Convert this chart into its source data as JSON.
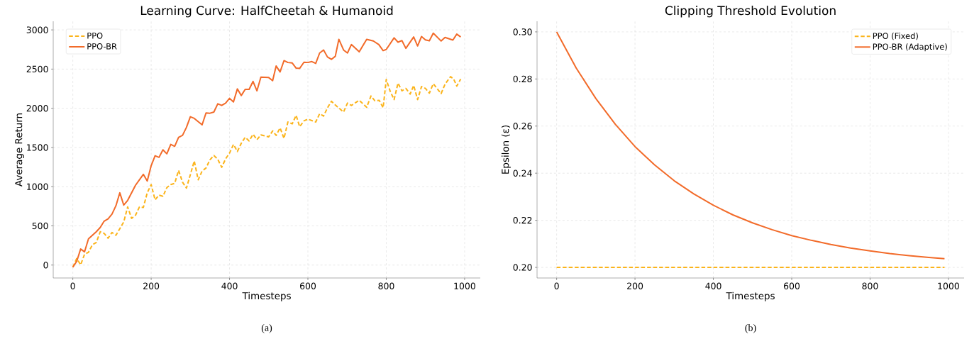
{
  "chart_data": [
    {
      "type": "line",
      "title": "Learning Curve: HalfCheetah & Humanoid",
      "xlabel": "Timesteps",
      "ylabel": "Average Return",
      "xlim": [
        -50,
        1040
      ],
      "ylim": [
        -165,
        3110
      ],
      "xticks": [
        0,
        200,
        400,
        600,
        800,
        1000
      ],
      "yticks": [
        0,
        500,
        1000,
        1500,
        2000,
        2500,
        3000
      ],
      "grid": true,
      "legend": "top left",
      "annotations": [
        "(a)"
      ],
      "series": [
        {
          "name": "PPO",
          "color": "#fbb41b",
          "line_style": "dashed",
          "x": [
            0,
            10,
            20,
            30,
            40,
            50,
            60,
            70,
            80,
            90,
            100,
            110,
            120,
            130,
            140,
            150,
            160,
            170,
            180,
            190,
            200,
            210,
            220,
            230,
            240,
            250,
            260,
            270,
            280,
            290,
            300,
            310,
            320,
            330,
            340,
            350,
            360,
            370,
            380,
            390,
            400,
            410,
            420,
            430,
            440,
            450,
            460,
            470,
            480,
            500,
            510,
            519,
            529,
            539,
            549,
            560,
            570,
            579,
            590,
            600,
            620,
            630,
            640,
            650,
            660,
            670,
            691,
            701,
            711,
            731,
            750,
            761,
            771,
            782,
            792,
            800,
            810,
            820,
            830,
            840,
            850,
            861,
            870,
            880,
            890,
            900,
            910,
            920,
            940,
            950,
            964,
            972,
            980,
            990
          ],
          "values": [
            -27,
            84,
            3,
            139,
            163,
            259,
            289,
            425,
            404,
            343,
            416,
            380,
            464,
            551,
            741,
            596,
            636,
            741,
            735,
            922,
            1027,
            831,
            892,
            877,
            988,
            1027,
            1042,
            1208,
            1057,
            982,
            1154,
            1328,
            1087,
            1199,
            1238,
            1343,
            1398,
            1349,
            1247,
            1355,
            1428,
            1539,
            1449,
            1554,
            1630,
            1584,
            1669,
            1599,
            1660,
            1636,
            1711,
            1654,
            1750,
            1615,
            1825,
            1801,
            1910,
            1765,
            1840,
            1861,
            1825,
            1931,
            1901,
            2006,
            2090,
            2042,
            1952,
            2066,
            2036,
            2102,
            2012,
            2157,
            2096,
            2102,
            2006,
            2367,
            2217,
            2111,
            2322,
            2223,
            2253,
            2181,
            2292,
            2111,
            2277,
            2253,
            2193,
            2313,
            2187,
            2307,
            2404,
            2373,
            2283,
            2373
          ]
        },
        {
          "name": "PPO-BR",
          "color": "#f26b2a",
          "line_style": "solid",
          "x": [
            0,
            10,
            20,
            30,
            40,
            50,
            60,
            70,
            80,
            90,
            100,
            110,
            120,
            130,
            140,
            160,
            180,
            190,
            200,
            210,
            220,
            230,
            240,
            250,
            260,
            270,
            280,
            290,
            300,
            310,
            330,
            340,
            350,
            360,
            370,
            380,
            390,
            400,
            410,
            420,
            430,
            440,
            450,
            460,
            470,
            480,
            500,
            510,
            519,
            529,
            539,
            549,
            560,
            570,
            579,
            590,
            600,
            610,
            620,
            630,
            640,
            650,
            660,
            670,
            679,
            691,
            701,
            711,
            731,
            750,
            767,
            781,
            792,
            800,
            820,
            830,
            840,
            850,
            870,
            880,
            890,
            900,
            910,
            920,
            940,
            950,
            970,
            980,
            990
          ],
          "values": [
            -27,
            48,
            205,
            169,
            334,
            380,
            425,
            479,
            560,
            590,
            650,
            756,
            922,
            765,
            825,
            1018,
            1157,
            1072,
            1268,
            1395,
            1374,
            1470,
            1419,
            1539,
            1515,
            1630,
            1654,
            1756,
            1892,
            1871,
            1789,
            1940,
            1937,
            1952,
            2057,
            2036,
            2066,
            2127,
            2081,
            2247,
            2163,
            2241,
            2241,
            2343,
            2223,
            2398,
            2392,
            2352,
            2539,
            2464,
            2608,
            2584,
            2578,
            2512,
            2509,
            2587,
            2584,
            2596,
            2572,
            2705,
            2744,
            2654,
            2624,
            2663,
            2880,
            2744,
            2705,
            2813,
            2720,
            2880,
            2859,
            2813,
            2735,
            2750,
            2898,
            2843,
            2864,
            2765,
            2910,
            2795,
            2916,
            2873,
            2861,
            2958,
            2858,
            2904,
            2870,
            2946,
            2910
          ]
        }
      ]
    },
    {
      "type": "line",
      "title": "Clipping Threshold Evolution",
      "xlabel": "Timesteps",
      "ylabel": "Epsilon (ε)",
      "xlim": [
        -50,
        1040
      ],
      "ylim": [
        0.1955,
        0.3045
      ],
      "xticks": [
        0,
        200,
        400,
        600,
        800,
        1000
      ],
      "yticks": [
        {
          "value": 0.2,
          "label": "0.20"
        },
        {
          "value": 0.22,
          "label": "0.22"
        },
        {
          "value": 0.24,
          "label": "0.24"
        },
        {
          "value": 0.26,
          "label": "0.26"
        },
        {
          "value": 0.28,
          "label": "0.28"
        },
        {
          "value": 0.3,
          "label": "0.30"
        }
      ],
      "grid": true,
      "legend": "top right",
      "annotations": [
        "(b)"
      ],
      "series": [
        {
          "name": "PPO (Fixed)",
          "color": "#fbb41b",
          "line_style": "dashed",
          "x": [
            0,
            990
          ],
          "values": [
            0.2,
            0.2
          ]
        },
        {
          "name": "PPO-BR (Adaptive)",
          "color": "#f26b2a",
          "line_style": "solid",
          "x": [
            0,
            50,
            100,
            150,
            200,
            250,
            300,
            350,
            400,
            450,
            500,
            550,
            600,
            650,
            700,
            750,
            800,
            850,
            900,
            950,
            990
          ],
          "values": [
            0.3,
            0.2846,
            0.2717,
            0.2607,
            0.2513,
            0.2435,
            0.2368,
            0.2312,
            0.2264,
            0.2223,
            0.2189,
            0.216,
            0.2135,
            0.2115,
            0.2097,
            0.2082,
            0.207,
            0.2059,
            0.205,
            0.2042,
            0.2037
          ]
        }
      ]
    }
  ]
}
